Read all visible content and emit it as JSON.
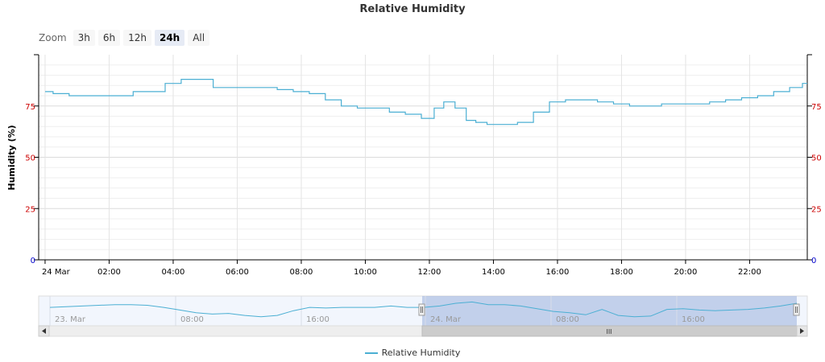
{
  "chart_data": {
    "type": "line",
    "title": "Relative Humidity",
    "ylabel": "Humidity (%)",
    "ylim": [
      0,
      100
    ],
    "y_ticks_left": [
      "0",
      "25",
      "50",
      "75"
    ],
    "y_ticks_right": [
      "0",
      "25",
      "50",
      "75"
    ],
    "x_tick_labels": [
      "24 Mar",
      "02:00",
      "04:00",
      "06:00",
      "08:00",
      "10:00",
      "12:00",
      "14:00",
      "16:00",
      "18:00",
      "20:00",
      "22:00"
    ],
    "x_range_hours": [
      -0.2,
      23.8
    ],
    "grid": true,
    "legend_position": "bottom-center",
    "series": [
      {
        "name": "Relative Humidity",
        "color": "#4bafd3",
        "x_hours": [
          0,
          0.5,
          1,
          1.5,
          2,
          2.5,
          3,
          3.5,
          4,
          4.5,
          5,
          5.5,
          6,
          6.5,
          7,
          7.5,
          8,
          8.5,
          9,
          9.5,
          10,
          10.5,
          11,
          11.5,
          12,
          12.3,
          12.6,
          13,
          13.3,
          13.6,
          14,
          14.5,
          15,
          15.5,
          16,
          16.5,
          17,
          17.5,
          18,
          18.5,
          19,
          19.5,
          20,
          20.5,
          21,
          21.5,
          22,
          22.5,
          23,
          23.5,
          23.8
        ],
        "values": [
          82,
          81,
          80,
          80,
          80,
          80,
          82,
          82,
          86,
          88,
          88,
          84,
          84,
          84,
          84,
          83,
          82,
          81,
          78,
          75,
          74,
          74,
          72,
          71,
          69,
          74,
          77,
          74,
          68,
          67,
          66,
          66,
          67,
          72,
          77,
          78,
          78,
          77,
          76,
          75,
          75,
          76,
          76,
          76,
          77,
          78,
          79,
          80,
          82,
          84,
          86
        ]
      }
    ],
    "navigator": {
      "x_tick_labels": [
        "23. Mar",
        "08:00",
        "16:00",
        "24. Mar",
        "08:00",
        "16:00"
      ],
      "selected_range_label": "24h",
      "scrollbar_grip": "III"
    }
  },
  "zoom": {
    "label": "Zoom",
    "buttons": [
      "3h",
      "6h",
      "12h",
      "24h",
      "All"
    ],
    "selected": "24h"
  },
  "legend": {
    "series_name": "Relative Humidity"
  }
}
